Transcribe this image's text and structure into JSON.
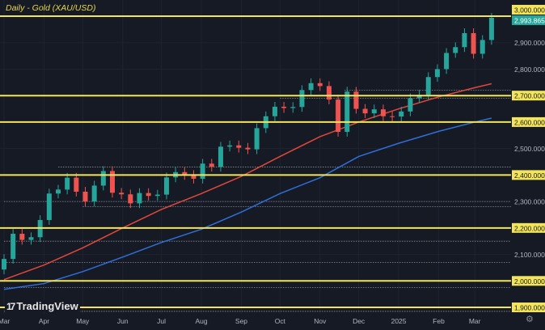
{
  "chart_data": {
    "type": "candlestick",
    "title": "Daily - Gold (XAU/USD)",
    "timeframe": "Daily",
    "symbol": "Gold (XAU/USD)",
    "last_price": "2,993.865",
    "ylim": [
      1880,
      3040
    ],
    "y_ticks": [
      {
        "value": 3000,
        "label": "3,000.000",
        "highlight": true
      },
      {
        "value": 2900,
        "label": "2,900.000",
        "highlight": false
      },
      {
        "value": 2800,
        "label": "2,800.000",
        "highlight": false
      },
      {
        "value": 2700,
        "label": "2,700.000",
        "highlight": true
      },
      {
        "value": 2600,
        "label": "2,600.000",
        "highlight": true
      },
      {
        "value": 2500,
        "label": "2,500.000",
        "highlight": false
      },
      {
        "value": 2400,
        "label": "2,400.000",
        "highlight": true
      },
      {
        "value": 2300,
        "label": "2,300.000",
        "highlight": false
      },
      {
        "value": 2200,
        "label": "2,200.000",
        "highlight": true
      },
      {
        "value": 2100,
        "label": "2,100.000",
        "highlight": false
      },
      {
        "value": 2000,
        "label": "2,000.000",
        "highlight": true
      },
      {
        "value": 1900,
        "label": "1,900.000",
        "highlight": true
      }
    ],
    "x_ticks": [
      {
        "date": "2024-03-01",
        "label": "Mar"
      },
      {
        "date": "2024-04-01",
        "label": "Apr"
      },
      {
        "date": "2024-05-01",
        "label": "May"
      },
      {
        "date": "2024-06-01",
        "label": "Jun"
      },
      {
        "date": "2024-07-01",
        "label": "Jul"
      },
      {
        "date": "2024-08-01",
        "label": "Aug"
      },
      {
        "date": "2024-09-01",
        "label": "Sep"
      },
      {
        "date": "2024-10-01",
        "label": "Oct"
      },
      {
        "date": "2024-11-01",
        "label": "Nov"
      },
      {
        "date": "2024-12-01",
        "label": "Dec"
      },
      {
        "date": "2025-01-01",
        "label": "2025"
      },
      {
        "date": "2025-02-01",
        "label": "Feb"
      },
      {
        "date": "2025-03-01",
        "label": "Mar"
      }
    ],
    "horizontal_levels": [
      3000,
      2700,
      2600,
      2400,
      2200,
      2000,
      1900
    ],
    "dotted_levels": [
      {
        "value": 2720,
        "from": "2024-11-20"
      },
      {
        "value": 2690,
        "from": "2024-10-01"
      },
      {
        "value": 2430,
        "from": "2024-04-12"
      },
      {
        "value": 2300,
        "from": "2024-03-01"
      },
      {
        "value": 2280,
        "from": "2024-05-01"
      },
      {
        "value": 2150,
        "from": "2024-03-01"
      },
      {
        "value": 2070,
        "from": "2024-03-01"
      },
      {
        "value": 1975,
        "from": "2024-03-01"
      },
      {
        "value": 1885,
        "from": "2024-03-01"
      }
    ],
    "candles_start": "2024-03-01",
    "candles_interval_days": 7,
    "closes": [
      2083,
      2178,
      2155,
      2165,
      2230,
      2330,
      2345,
      2390,
      2337,
      2300,
      2360,
      2415,
      2333,
      2327,
      2293,
      2332,
      2321,
      2326,
      2391,
      2411,
      2400,
      2386,
      2443,
      2431,
      2507,
      2512,
      2503,
      2497,
      2577,
      2622,
      2658,
      2653,
      2657,
      2721,
      2747,
      2736,
      2685,
      2563,
      2715,
      2650,
      2633,
      2648,
      2622,
      2621,
      2640,
      2690,
      2703,
      2770,
      2800,
      2861,
      2883,
      2936,
      2858,
      2910,
      2994
    ],
    "series": [
      {
        "color": "#e0483a",
        "points": [
          [
            "2024-03-01",
            2005
          ],
          [
            "2024-04-01",
            2060
          ],
          [
            "2024-05-01",
            2125
          ],
          [
            "2024-06-01",
            2200
          ],
          [
            "2024-07-01",
            2270
          ],
          [
            "2024-08-01",
            2330
          ],
          [
            "2024-09-01",
            2395
          ],
          [
            "2024-10-01",
            2470
          ],
          [
            "2024-11-01",
            2545
          ],
          [
            "2024-12-01",
            2600
          ],
          [
            "2025-01-01",
            2650
          ],
          [
            "2025-02-01",
            2695
          ],
          [
            "2025-03-01",
            2730
          ],
          [
            "2025-03-14",
            2745
          ]
        ]
      },
      {
        "color": "#2f6fd8",
        "points": [
          [
            "2024-03-01",
            1968
          ],
          [
            "2024-04-01",
            1990
          ],
          [
            "2024-05-01",
            2035
          ],
          [
            "2024-06-01",
            2090
          ],
          [
            "2024-07-01",
            2145
          ],
          [
            "2024-08-01",
            2195
          ],
          [
            "2024-09-01",
            2260
          ],
          [
            "2024-10-01",
            2330
          ],
          [
            "2024-11-01",
            2390
          ],
          [
            "2024-12-01",
            2470
          ],
          [
            "2025-01-01",
            2520
          ],
          [
            "2025-02-01",
            2565
          ],
          [
            "2025-03-01",
            2600
          ],
          [
            "2025-03-14",
            2615
          ]
        ]
      }
    ],
    "colors": {
      "background": "#161a25",
      "level": "#f2e55c",
      "up": "#26a69a",
      "down": "#ef5350",
      "axis_text": "#b2b5be"
    },
    "grid": true
  },
  "branding": {
    "logo_text": "TradingView",
    "logo_mark": "17"
  },
  "icons": {
    "settings": "gear-icon"
  }
}
